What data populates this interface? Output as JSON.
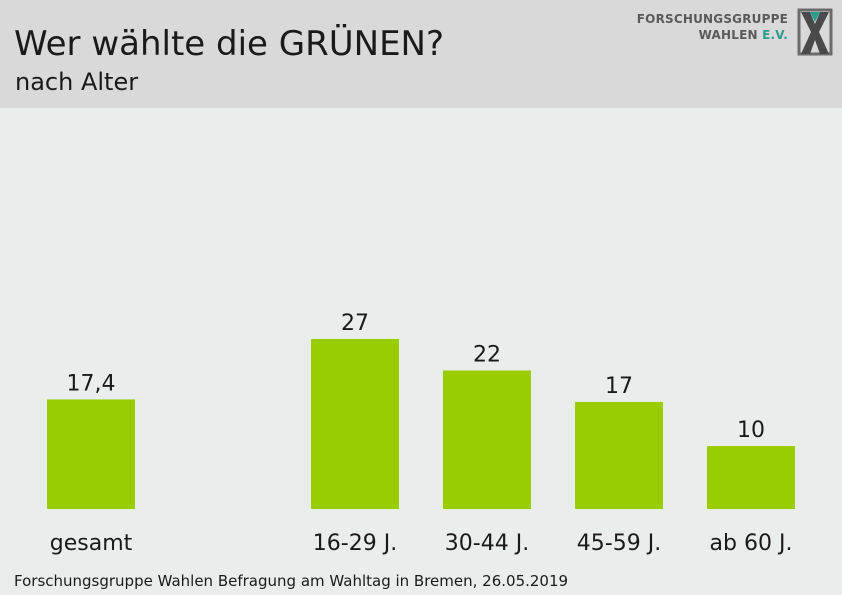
{
  "header": {
    "title": "Wer wählte die GRÜNEN?",
    "subtitle": "nach Alter",
    "logo": {
      "line1": "FORSCHUNGSGRUPPE",
      "line2_main": "WAHLEN ",
      "line2_accent": "E.V.",
      "icon": "fgw-x-logo-icon"
    }
  },
  "colors": {
    "bar": "#9acd00",
    "header_bg": "#d9d9d9",
    "background": "#e9edec",
    "logo_accent": "#2a9d8f"
  },
  "chart_data": {
    "type": "bar",
    "categories": [
      "gesamt",
      "16-29 J.",
      "30-44 J.",
      "45-59 J.",
      "ab 60 J."
    ],
    "values": [
      17.4,
      27,
      22,
      17,
      10
    ],
    "value_labels": [
      "17,4",
      "27",
      "22",
      "17",
      "10"
    ],
    "title": "Wer wählte die GRÜNEN?",
    "subtitle": "nach Alter",
    "xlabel": "",
    "ylabel": "",
    "ylim": [
      0,
      27
    ],
    "grid": false
  },
  "footer": {
    "source": "Forschungsgruppe Wahlen Befragung am Wahltag in Bremen, 26.05.2019"
  }
}
